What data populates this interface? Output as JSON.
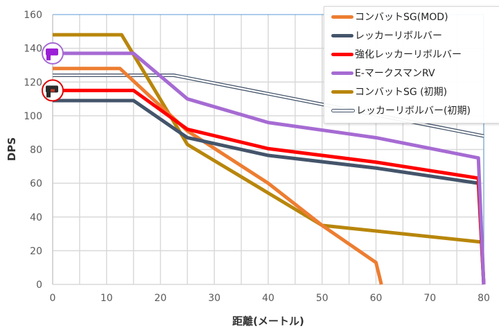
{
  "chart_data": {
    "type": "line",
    "title": "",
    "xlabel": "距離(メートル)",
    "ylabel": "DPS",
    "xlim": [
      0,
      80
    ],
    "ylim": [
      0,
      160
    ],
    "xticks": [
      0,
      10,
      20,
      30,
      40,
      50,
      60,
      70,
      80
    ],
    "yticks": [
      0,
      20,
      40,
      60,
      80,
      100,
      120,
      140,
      160
    ],
    "grid": true,
    "legend_position": "top-right",
    "series": [
      {
        "name": "コンバットSG(MOD)",
        "color": "#ED7D31",
        "style": "solid",
        "points": [
          [
            0,
            128
          ],
          [
            12.5,
            128
          ],
          [
            25,
            91
          ],
          [
            40,
            60
          ],
          [
            50,
            35
          ],
          [
            60,
            13
          ],
          [
            61,
            0
          ]
        ]
      },
      {
        "name": "レッカーリボルバー",
        "color": "#44546A",
        "style": "solid",
        "points": [
          [
            0,
            109
          ],
          [
            15,
            109
          ],
          [
            25,
            87
          ],
          [
            40,
            76.5
          ],
          [
            60,
            69
          ],
          [
            79,
            60
          ],
          [
            80,
            0
          ]
        ]
      },
      {
        "name": "強化レッカーリボルバー",
        "color": "#FF0000",
        "style": "solid",
        "points": [
          [
            0,
            115
          ],
          [
            15,
            115
          ],
          [
            25,
            92
          ],
          [
            40,
            80.5
          ],
          [
            60,
            72.5
          ],
          [
            79,
            63
          ],
          [
            80,
            0
          ]
        ]
      },
      {
        "name": "E-マークスマンRV",
        "color": "#A66BD3",
        "style": "solid",
        "points": [
          [
            0,
            137
          ],
          [
            15,
            137
          ],
          [
            25,
            110
          ],
          [
            40,
            96
          ],
          [
            60,
            87
          ],
          [
            79,
            75
          ],
          [
            80,
            0
          ]
        ]
      },
      {
        "name": "コンバットSG (初期)",
        "color": "#B8860B",
        "style": "solid",
        "points": [
          [
            0,
            148
          ],
          [
            12.8,
            148
          ],
          [
            25,
            83
          ],
          [
            50,
            35
          ],
          [
            80,
            25
          ]
        ]
      },
      {
        "name": "レッカーリボルバー(初期)",
        "color": "#44546A",
        "style": "double",
        "points": [
          [
            0,
            124
          ],
          [
            22.5,
            124
          ],
          [
            80,
            88
          ]
        ]
      }
    ],
    "markers": [
      {
        "series": "E-マークスマンRV",
        "icon": "purple-gun-icon",
        "color": "#A66BD3"
      },
      {
        "series": "強化レッカーリボルバー",
        "icon": "black-gun-icon",
        "color": "#E00000"
      }
    ]
  }
}
